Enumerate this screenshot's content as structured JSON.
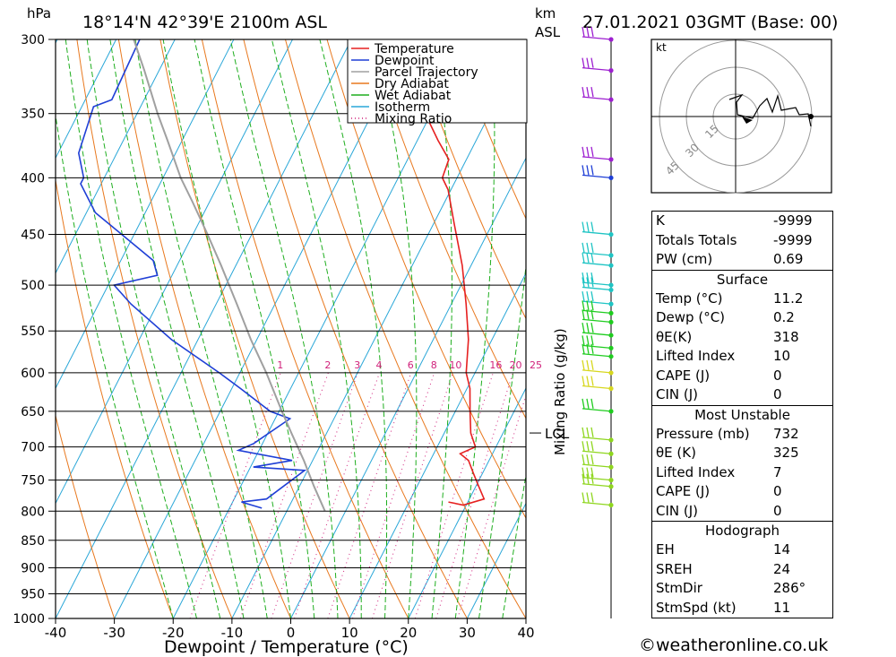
{
  "header": {
    "hpa_label": "hPa",
    "location": "18°14'N  42°39'E  2100m  ASL",
    "km_label": "km",
    "asl_label": "ASL",
    "datetime": "27.01.2021  03GMT  (Base: 00)"
  },
  "legend": [
    {
      "label": "Temperature",
      "color": "#e62020",
      "style": "solid"
    },
    {
      "label": "Dewpoint",
      "color": "#1f3fd6",
      "style": "solid"
    },
    {
      "label": "Parcel Trajectory",
      "color": "#a0a0a0",
      "style": "solid"
    },
    {
      "label": "Dry Adiabat",
      "color": "#e8781e",
      "style": "solid"
    },
    {
      "label": "Wet Adiabat",
      "color": "#1fae1f",
      "style": "solid"
    },
    {
      "label": "Isotherm",
      "color": "#2aa7d8",
      "style": "solid"
    },
    {
      "label": "Mixing Ratio",
      "color": "#d0207a",
      "style": "dotted"
    }
  ],
  "colors": {
    "temperature": "#e62020",
    "dewpoint": "#1f3fd6",
    "parcel": "#a0a0a0",
    "dry_adiabat": "#e8781e",
    "wet_adiabat": "#1fae1f",
    "isotherm": "#2aa7d8",
    "mixing_ratio": "#d0207a"
  },
  "chart_data": {
    "type": "line",
    "subtype": "skew-T log-p sounding",
    "xlabel": "Dewpoint / Temperature (°C)",
    "ylabel": "hPa",
    "xlim": [
      -40,
      40
    ],
    "ylim": [
      1000,
      300
    ],
    "y_scale": "log",
    "x_ticks": [
      -40,
      -30,
      -20,
      -10,
      0,
      10,
      20,
      30,
      40
    ],
    "y_ticks": [
      300,
      350,
      400,
      450,
      500,
      550,
      600,
      650,
      700,
      750,
      800,
      850,
      900,
      950,
      1000
    ],
    "grid": true,
    "mixing_ratio_axis_label": "Mixing Ratio (g/kg)",
    "mixing_ratio_values": [
      1,
      2,
      3,
      4,
      6,
      8,
      10,
      16,
      20,
      25
    ],
    "lcl_label": "LCL",
    "lcl_pressure": 680,
    "series": [
      {
        "name": "Temperature",
        "pressure": [
          785,
          790,
          780,
          760,
          740,
          720,
          710,
          700,
          680,
          650,
          620,
          600,
          560,
          520,
          480,
          440,
          410,
          400,
          385,
          370,
          350,
          340,
          320,
          300
        ],
        "temperature": [
          16.7,
          19.5,
          22.5,
          20.5,
          18.5,
          16.5,
          14.5,
          16.5,
          14.5,
          12.5,
          10.5,
          8.5,
          6,
          2.5,
          -1.5,
          -6.5,
          -10.5,
          -12.5,
          -13,
          -16.5,
          -21,
          -21,
          -24.5,
          -30
        ]
      },
      {
        "name": "Dewpoint",
        "pressure": [
          795,
          785,
          780,
          735,
          730,
          720,
          705,
          695,
          660,
          650,
          620,
          600,
          560,
          520,
          500,
          490,
          475,
          430,
          405,
          400,
          380,
          345,
          340,
          300
        ],
        "temperature": [
          -14.5,
          -18.5,
          -14.5,
          -10.5,
          -19.5,
          -13.5,
          -23.5,
          -21.5,
          -17.5,
          -21.5,
          -28.5,
          -33.5,
          -44.5,
          -54.5,
          -59,
          -52.5,
          -54.5,
          -68.5,
          -73.5,
          -73.5,
          -76.5,
          -78,
          -75.5,
          -76
        ]
      },
      {
        "name": "Parcel Trajectory",
        "pressure": [
          800,
          760,
          720,
          680,
          650,
          600,
          560,
          520,
          480,
          450,
          420,
          400,
          370,
          350,
          320,
          300
        ],
        "temperature": [
          -3.5,
          -7.5,
          -11.5,
          -16,
          -19.5,
          -25.5,
          -31,
          -36.5,
          -42.5,
          -47.5,
          -53,
          -57,
          -62.5,
          -66.5,
          -72.5,
          -77
        ]
      }
    ]
  },
  "wind_barbs": {
    "pressures": [
      300,
      320,
      340,
      385,
      400,
      450,
      470,
      480,
      500,
      505,
      520,
      530,
      540,
      555,
      570,
      580,
      600,
      620,
      650,
      690,
      710,
      730,
      750,
      760,
      790
    ]
  },
  "hodograph": {
    "unit_label": "kt",
    "ring_labels": [
      "15",
      "30",
      "45"
    ]
  },
  "indices": {
    "general": [
      {
        "key": "K",
        "value": "-9999"
      },
      {
        "key": "Totals Totals",
        "value": "-9999"
      },
      {
        "key": "PW (cm)",
        "value": "0.69"
      }
    ],
    "surface_title": "Surface",
    "surface": [
      {
        "key": "Temp (°C)",
        "value": "11.2"
      },
      {
        "key": "Dewp (°C)",
        "value": "0.2"
      },
      {
        "key": "θE(K)",
        "value": "318"
      },
      {
        "key": "Lifted Index",
        "value": "10"
      },
      {
        "key": "CAPE (J)",
        "value": "0"
      },
      {
        "key": "CIN (J)",
        "value": "0"
      }
    ],
    "most_unstable_title": "Most Unstable",
    "most_unstable": [
      {
        "key": "Pressure (mb)",
        "value": "732"
      },
      {
        "key": "θE (K)",
        "value": "325"
      },
      {
        "key": "Lifted Index",
        "value": "7"
      },
      {
        "key": "CAPE (J)",
        "value": "0"
      },
      {
        "key": "CIN (J)",
        "value": "0"
      }
    ],
    "hodograph_title": "Hodograph",
    "hodograph": [
      {
        "key": "EH",
        "value": "14"
      },
      {
        "key": "SREH",
        "value": "24"
      },
      {
        "key": "StmDir",
        "value": "286°"
      },
      {
        "key": "StmSpd (kt)",
        "value": "11"
      }
    ]
  },
  "copyright": "©weatheronline.co.uk"
}
